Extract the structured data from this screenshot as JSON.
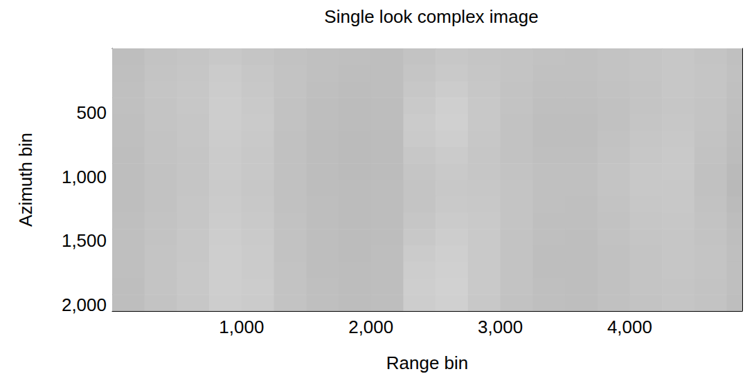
{
  "chart_data": {
    "type": "heatmap",
    "title": "Single look complex image",
    "x_label": "Range bin",
    "y_label": "Azimuth bin",
    "xlim": [
      0,
      4870
    ],
    "ylim": [
      0,
      2048
    ],
    "xticks": [
      1000,
      2000,
      3000,
      4000
    ],
    "yticks": [
      500,
      1000,
      1500,
      2000
    ],
    "grid": false,
    "x_bins": [
      0,
      250,
      500,
      750,
      1000,
      1250,
      1500,
      1750,
      2000,
      2250,
      2500,
      2750,
      3000,
      3250,
      3500,
      3750,
      4000,
      4250,
      4500,
      4750,
      4870
    ],
    "y_bins": [
      0,
      128,
      256,
      384,
      512,
      640,
      768,
      896,
      1024,
      1152,
      1280,
      1408,
      1536,
      1664,
      1792,
      1920,
      2048
    ],
    "cells": [
      [
        190,
        195,
        197,
        200,
        197,
        194,
        192,
        191,
        190,
        195,
        199,
        197,
        196,
        194,
        193,
        195,
        197,
        199,
        196,
        192
      ],
      [
        191,
        196,
        198,
        203,
        199,
        195,
        192,
        190,
        190,
        197,
        201,
        198,
        196,
        193,
        193,
        195,
        197,
        199,
        197,
        193
      ],
      [
        192,
        197,
        199,
        204,
        200,
        195,
        191,
        189,
        190,
        199,
        204,
        199,
        195,
        192,
        192,
        194,
        196,
        199,
        197,
        192
      ],
      [
        192,
        196,
        199,
        205,
        201,
        194,
        190,
        188,
        189,
        201,
        207,
        200,
        195,
        191,
        191,
        193,
        196,
        198,
        196,
        191
      ],
      [
        191,
        196,
        198,
        205,
        202,
        194,
        190,
        188,
        189,
        203,
        208,
        200,
        194,
        190,
        190,
        193,
        197,
        199,
        196,
        190
      ],
      [
        191,
        195,
        198,
        204,
        201,
        193,
        189,
        187,
        188,
        202,
        206,
        199,
        194,
        190,
        190,
        194,
        198,
        200,
        195,
        189
      ],
      [
        190,
        195,
        197,
        203,
        200,
        193,
        189,
        187,
        188,
        199,
        203,
        198,
        194,
        191,
        191,
        195,
        199,
        201,
        194,
        188
      ],
      [
        190,
        194,
        197,
        203,
        200,
        193,
        189,
        187,
        188,
        197,
        201,
        198,
        195,
        192,
        192,
        196,
        200,
        201,
        193,
        186
      ],
      [
        190,
        194,
        197,
        202,
        199,
        193,
        189,
        188,
        189,
        196,
        200,
        199,
        196,
        192,
        192,
        196,
        200,
        200,
        193,
        185
      ],
      [
        190,
        194,
        198,
        203,
        200,
        193,
        190,
        188,
        189,
        196,
        201,
        200,
        196,
        192,
        191,
        195,
        199,
        200,
        194,
        187
      ],
      [
        191,
        195,
        198,
        204,
        201,
        194,
        190,
        188,
        189,
        198,
        203,
        201,
        196,
        191,
        191,
        194,
        198,
        199,
        195,
        189
      ],
      [
        191,
        195,
        199,
        205,
        202,
        194,
        190,
        188,
        189,
        200,
        205,
        201,
        195,
        191,
        190,
        194,
        197,
        198,
        195,
        190
      ],
      [
        191,
        196,
        199,
        206,
        203,
        194,
        190,
        188,
        190,
        203,
        207,
        201,
        195,
        190,
        190,
        193,
        196,
        198,
        196,
        191
      ],
      [
        191,
        196,
        200,
        206,
        203,
        195,
        190,
        189,
        190,
        205,
        208,
        201,
        195,
        190,
        190,
        193,
        196,
        198,
        196,
        191
      ],
      [
        190,
        196,
        200,
        206,
        204,
        195,
        191,
        189,
        190,
        206,
        209,
        201,
        195,
        191,
        190,
        193,
        196,
        197,
        195,
        191
      ],
      [
        190,
        195,
        199,
        205,
        203,
        195,
        191,
        189,
        190,
        205,
        208,
        200,
        194,
        191,
        190,
        193,
        195,
        197,
        195,
        190
      ]
    ]
  }
}
